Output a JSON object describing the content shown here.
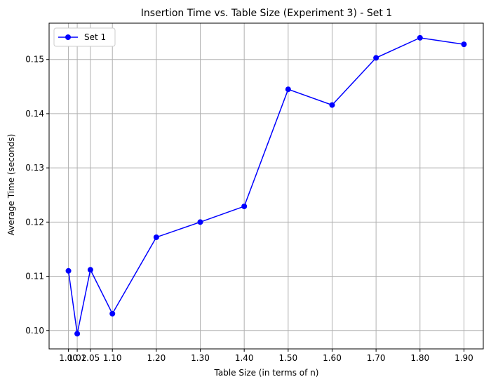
{
  "chart_data": {
    "type": "line",
    "title": "Insertion Time vs. Table Size (Experiment 3) - Set 1",
    "xlabel": "Table Size (in terms of n)",
    "ylabel": "Average Time (seconds)",
    "x": [
      1.0,
      1.02,
      1.05,
      1.1,
      1.2,
      1.3,
      1.4,
      1.5,
      1.6,
      1.7,
      1.8,
      1.9
    ],
    "x_tick_labels": [
      "1.00",
      "1.02",
      "1.05",
      "1.10",
      "1.20",
      "1.30",
      "1.40",
      "1.50",
      "1.60",
      "1.70",
      "1.80",
      "1.90"
    ],
    "y_ticks": [
      0.1,
      0.11,
      0.12,
      0.13,
      0.14,
      0.15
    ],
    "y_tick_labels": [
      "0.10",
      "0.11",
      "0.12",
      "0.13",
      "0.14",
      "0.15"
    ],
    "xlim": [
      0.956,
      1.944
    ],
    "ylim": [
      0.0966,
      0.1567
    ],
    "grid": true,
    "legend_position": "top-left",
    "series": [
      {
        "name": "Set 1",
        "color": "#0000ff",
        "marker": "circle",
        "values": [
          0.111,
          0.0994,
          0.1112,
          0.1031,
          0.1172,
          0.12,
          0.1229,
          0.1445,
          0.1416,
          0.1503,
          0.154,
          0.1528
        ]
      }
    ]
  }
}
